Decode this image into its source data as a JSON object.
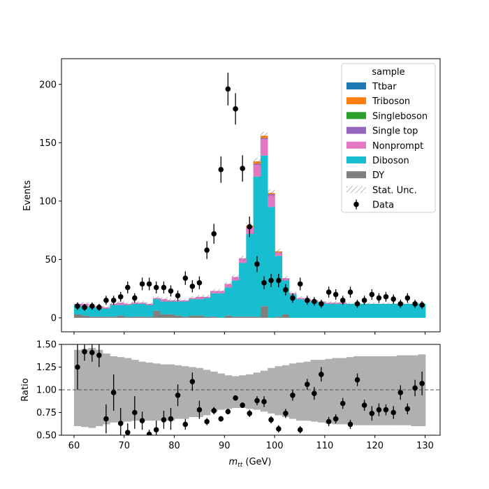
{
  "chart_data": {
    "type": "bar",
    "title": "",
    "upper": {
      "ylabel": "Events",
      "ylim": [
        -12,
        222
      ],
      "yticks": [
        0,
        50,
        100,
        150,
        200
      ],
      "xlim": [
        57.5,
        133
      ],
      "bin_edges_start": 60,
      "bin_width": 1.43,
      "n_bins": 49,
      "stack_order_bottom_to_top": [
        "DY",
        "Diboson",
        "Nonprompt",
        "Single top",
        "Singleboson",
        "Triboson",
        "Ttbar"
      ],
      "series": [
        {
          "name": "DY",
          "color": "#7f7f7f",
          "values": [
            3,
            2,
            1,
            1,
            1,
            1,
            2,
            1,
            1,
            1,
            1,
            6,
            3,
            3,
            2,
            1,
            2,
            2,
            1,
            1,
            0,
            2,
            1,
            1,
            1,
            1,
            10,
            0,
            1,
            3,
            0,
            0,
            0,
            0,
            0,
            0,
            0,
            0,
            0,
            0,
            0,
            0,
            0,
            0,
            0,
            0,
            0,
            0,
            0
          ]
        },
        {
          "name": "Diboson",
          "color": "#17becf",
          "values": [
            8,
            8,
            8,
            7,
            7,
            10,
            9,
            10,
            11,
            11,
            10,
            10,
            11,
            11,
            12,
            13,
            14,
            14,
            16,
            20,
            21,
            24,
            31,
            46,
            71,
            120,
            129,
            95,
            52,
            29,
            20,
            16,
            15,
            14,
            13,
            12,
            12,
            12,
            12,
            12,
            12,
            12,
            12,
            12,
            12,
            12,
            12,
            12,
            12
          ]
        },
        {
          "name": "Nonprompt",
          "color": "#e377c2",
          "values": [
            1,
            2,
            1,
            2,
            1,
            1,
            2,
            1,
            1,
            1,
            1,
            1,
            2,
            1,
            1,
            1,
            1,
            2,
            1,
            2,
            2,
            3,
            3,
            4,
            6,
            10,
            14,
            10,
            3,
            2,
            1,
            1,
            1,
            1,
            1,
            1,
            1,
            1,
            0,
            0,
            0,
            0,
            0,
            0,
            0,
            0,
            0,
            0,
            0
          ]
        },
        {
          "name": "Single top",
          "color": "#9467bd",
          "values": [
            0,
            0,
            0,
            0,
            0,
            0,
            0,
            0,
            0,
            0,
            0,
            0,
            0,
            0,
            0,
            0,
            0,
            0,
            0,
            0,
            0,
            0,
            0,
            0,
            0,
            1,
            1,
            1,
            0,
            0,
            0,
            0,
            0,
            0,
            0,
            0,
            0,
            0,
            0,
            0,
            0,
            0,
            0,
            0,
            0,
            0,
            0,
            0,
            0
          ]
        },
        {
          "name": "Singleboson",
          "color": "#2ca02c",
          "values": [
            0,
            0,
            0,
            0,
            0,
            0,
            0,
            0,
            0,
            0,
            0,
            0,
            0,
            0,
            0,
            0,
            0,
            0,
            0,
            0,
            0,
            0,
            0,
            0,
            0,
            0,
            0,
            0,
            0,
            0,
            0,
            0,
            0,
            0,
            0,
            0,
            0,
            0,
            0,
            0,
            0,
            0,
            0,
            0,
            0,
            0,
            0,
            0,
            0
          ]
        },
        {
          "name": "Triboson",
          "color": "#ff7f0e",
          "values": [
            0,
            0,
            0,
            0,
            0,
            0,
            0,
            0,
            0,
            0,
            0,
            0,
            0,
            0,
            0,
            0,
            0,
            0,
            0,
            0,
            0,
            0,
            0,
            0,
            1,
            2,
            2,
            1,
            1,
            0,
            0,
            0,
            0,
            0,
            0,
            0,
            0,
            0,
            0,
            0,
            0,
            0,
            0,
            0,
            0,
            0,
            0,
            0,
            0
          ]
        },
        {
          "name": "Ttbar",
          "color": "#1f77b4",
          "values": [
            0,
            0,
            0,
            0,
            0,
            0,
            0,
            0,
            0,
            0,
            0,
            0,
            0,
            0,
            0,
            0,
            0,
            0,
            0,
            0,
            0,
            0,
            0,
            0,
            0,
            0,
            0,
            0,
            0,
            0,
            0,
            0,
            0,
            0,
            0,
            0,
            0,
            0,
            0,
            0,
            0,
            0,
            0,
            0,
            0,
            0,
            0,
            0,
            0
          ]
        }
      ],
      "stat_unc_label": "Stat. Unc.",
      "stat_unc_values": [
        1.5,
        1.5,
        1.4,
        1.4,
        1.3,
        1.4,
        1.5,
        1.4,
        1.5,
        1.5,
        1.4,
        1.6,
        1.6,
        1.5,
        1.5,
        1.5,
        1.6,
        1.6,
        1.6,
        1.7,
        1.7,
        1.8,
        1.9,
        2.2,
        2.6,
        3.2,
        3.3,
        2.9,
        2.2,
        1.8,
        1.5,
        1.4,
        1.3,
        1.3,
        1.2,
        1.2,
        1.2,
        1.2,
        1.2,
        1.2,
        1.2,
        1.2,
        1.2,
        1.2,
        1.2,
        1.2,
        1.2,
        1.2,
        1.2
      ],
      "data": {
        "name": "Data",
        "x": [
          60.7,
          62.1,
          63.6,
          65.0,
          66.4,
          67.9,
          69.3,
          70.7,
          72.1,
          73.6,
          75.0,
          76.4,
          77.9,
          79.3,
          80.7,
          82.2,
          83.6,
          85.0,
          86.5,
          87.9,
          89.3,
          90.7,
          92.2,
          93.6,
          95.0,
          96.5,
          97.9,
          99.3,
          100.8,
          102.2,
          103.6,
          105.1,
          106.5,
          107.9,
          109.3,
          110.8,
          112.2,
          113.6,
          115.1,
          116.5,
          117.9,
          119.4,
          120.8,
          122.2,
          123.7,
          125.1,
          126.5,
          128.0,
          129.4
        ],
        "y": [
          10,
          9,
          10,
          9,
          15,
          15,
          18,
          26,
          17,
          29,
          29,
          26,
          26,
          23,
          19,
          34,
          27,
          30,
          58,
          72,
          127,
          196,
          179,
          128,
          78,
          46,
          30,
          32,
          32,
          24,
          17,
          29,
          15,
          14,
          12,
          22,
          20,
          15,
          22,
          12,
          15,
          20,
          17,
          18,
          16,
          12,
          17,
          12,
          11
        ],
        "yerr": [
          3.2,
          3.0,
          3.2,
          3.0,
          3.9,
          3.9,
          4.2,
          5.1,
          4.1,
          5.4,
          5.4,
          5.1,
          5.1,
          4.8,
          4.4,
          5.8,
          5.2,
          5.5,
          7.6,
          8.5,
          11.3,
          14.0,
          13.4,
          11.3,
          8.8,
          6.8,
          5.5,
          5.7,
          5.7,
          4.9,
          4.1,
          5.4,
          3.9,
          3.7,
          3.5,
          4.7,
          4.5,
          3.9,
          4.7,
          3.5,
          3.9,
          4.5,
          4.1,
          4.2,
          4.0,
          3.5,
          4.1,
          3.5,
          3.3
        ]
      },
      "legend": {
        "title": "sample",
        "placement": "upper right"
      }
    },
    "lower": {
      "ylabel": "Ratio",
      "xlabel": "m_tt (GeV)",
      "ylim": [
        0.5,
        1.5
      ],
      "yticks": [
        0.5,
        0.75,
        1.0,
        1.25,
        1.5
      ],
      "ytick_labels": [
        "0.50",
        "0.75",
        "1.00",
        "1.25",
        "1.50"
      ],
      "xticks": [
        60,
        70,
        80,
        90,
        100,
        110,
        120,
        130
      ],
      "reference_line": 1.0,
      "band_lo": [
        0.6,
        0.59,
        0.58,
        0.6,
        0.62,
        0.64,
        0.64,
        0.65,
        0.66,
        0.66,
        0.66,
        0.66,
        0.66,
        0.66,
        0.68,
        0.68,
        0.7,
        0.7,
        0.72,
        0.76,
        0.78,
        0.79,
        0.8,
        0.8,
        0.79,
        0.78,
        0.76,
        0.74,
        0.72,
        0.7,
        0.68,
        0.66,
        0.66,
        0.65,
        0.64,
        0.63,
        0.62,
        0.62,
        0.62,
        0.61,
        0.61,
        0.61,
        0.61,
        0.61,
        0.61,
        0.61,
        0.61,
        0.6,
        0.6
      ],
      "band_hi": [
        1.44,
        1.45,
        1.46,
        1.44,
        1.4,
        1.37,
        1.36,
        1.35,
        1.33,
        1.31,
        1.3,
        1.29,
        1.28,
        1.28,
        1.27,
        1.26,
        1.25,
        1.24,
        1.22,
        1.2,
        1.18,
        1.16,
        1.15,
        1.16,
        1.17,
        1.19,
        1.21,
        1.24,
        1.26,
        1.27,
        1.29,
        1.3,
        1.31,
        1.33,
        1.33,
        1.34,
        1.35,
        1.35,
        1.36,
        1.37,
        1.37,
        1.37,
        1.37,
        1.37,
        1.37,
        1.38,
        1.38,
        1.38,
        1.39
      ],
      "ratio": [
        1.25,
        1.42,
        1.41,
        1.38,
        0.68,
        0.97,
        0.63,
        0.53,
        0.75,
        0.66,
        0.51,
        0.56,
        0.67,
        0.68,
        0.94,
        0.62,
        1.09,
        0.78,
        0.65,
        0.77,
        0.68,
        0.76,
        0.91,
        0.83,
        0.74,
        0.88,
        0.87,
        0.67,
        0.57,
        0.74,
        0.94,
        0.56,
        1.06,
        0.96,
        1.17,
        0.65,
        0.68,
        0.85,
        0.62,
        1.11,
        0.83,
        0.74,
        0.78,
        0.78,
        0.75,
        0.97,
        0.79,
        1.02,
        1.07
      ],
      "ratio_err": [
        0.25,
        0.1,
        0.1,
        0.13,
        0.16,
        0.2,
        0.17,
        0.1,
        0.18,
        0.1,
        0.05,
        0.1,
        0.1,
        0.12,
        0.12,
        0.06,
        0.1,
        0.1,
        0.04,
        0.04,
        0.03,
        0.03,
        0.03,
        0.03,
        0.04,
        0.05,
        0.06,
        0.04,
        0.04,
        0.05,
        0.06,
        0.04,
        0.06,
        0.07,
        0.08,
        0.05,
        0.05,
        0.06,
        0.05,
        0.07,
        0.06,
        0.08,
        0.07,
        0.06,
        0.07,
        0.08,
        0.06,
        0.09,
        0.13
      ]
    }
  }
}
